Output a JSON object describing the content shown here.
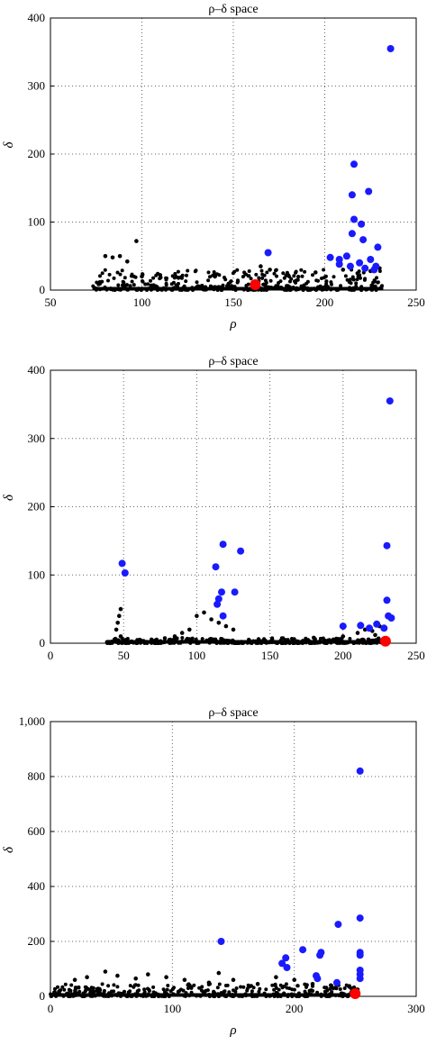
{
  "chart_data": [
    {
      "type": "scatter",
      "title": "ρ–δ space",
      "xlabel": "ρ",
      "ylabel": "δ",
      "xlim": [
        50,
        250
      ],
      "ylim": [
        0,
        400
      ],
      "xticks": [
        "50",
        "100",
        "150",
        "200",
        "250"
      ],
      "yticks": [
        "0",
        "100",
        "200",
        "300",
        "400"
      ],
      "grid": "dotted",
      "black_band": {
        "x_range": [
          73,
          232
        ],
        "y_max": 30
      },
      "series": [
        {
          "color": "#000000",
          "points": [
            [
              80,
              50
            ],
            [
              84,
              48
            ],
            [
              88,
              50
            ],
            [
              92,
              42
            ],
            [
              97,
              72
            ],
            [
              100,
              20
            ],
            [
              110,
              22
            ],
            [
              120,
              18
            ],
            [
              140,
              20
            ],
            [
              165,
              35
            ],
            [
              170,
              30
            ],
            [
              180,
              22
            ],
            [
              195,
              26
            ],
            [
              210,
              30
            ],
            [
              225,
              28
            ],
            [
              230,
              32
            ]
          ]
        },
        {
          "color": "#1a1aff",
          "points": [
            [
              236,
              355
            ],
            [
              216,
              185
            ],
            [
              224,
              145
            ],
            [
              215,
              140
            ],
            [
              216,
              104
            ],
            [
              220,
              97
            ],
            [
              215,
              83
            ],
            [
              221,
              74
            ],
            [
              229,
              63
            ],
            [
              169,
              55
            ],
            [
              203,
              48
            ],
            [
              208,
              45
            ],
            [
              212,
              50
            ],
            [
              219,
              40
            ],
            [
              214,
              35
            ],
            [
              208,
              38
            ],
            [
              225,
              45
            ],
            [
              222,
              32
            ],
            [
              227,
              30
            ],
            [
              228,
              35
            ]
          ]
        },
        {
          "color": "#ff0000",
          "points": [
            [
              162,
              8
            ]
          ]
        }
      ]
    },
    {
      "type": "scatter",
      "title": "ρ–δ space",
      "xlabel": "",
      "ylabel": "δ",
      "xlim": [
        0,
        250
      ],
      "ylim": [
        0,
        400
      ],
      "xticks": [
        "0",
        "50",
        "100",
        "150",
        "200",
        "250"
      ],
      "yticks": [
        "0",
        "100",
        "200",
        "300",
        "400"
      ],
      "grid": "dotted",
      "black_band": {
        "x_range": [
          38,
          230
        ],
        "y_max": 8
      },
      "series": [
        {
          "color": "#000000",
          "points": [
            [
              48,
              50
            ],
            [
              47,
              40
            ],
            [
              46,
              30
            ],
            [
              45,
              20
            ],
            [
              48,
              10
            ],
            [
              100,
              40
            ],
            [
              105,
              45
            ],
            [
              110,
              35
            ],
            [
              118,
              42
            ],
            [
              115,
              30
            ],
            [
              120,
              25
            ],
            [
              125,
              20
            ],
            [
              95,
              20
            ],
            [
              90,
              15
            ],
            [
              85,
              10
            ],
            [
              180,
              8
            ],
            [
              200,
              10
            ],
            [
              210,
              15
            ],
            [
              215,
              20
            ],
            [
              220,
              18
            ],
            [
              225,
              25
            ],
            [
              222,
              12
            ]
          ]
        },
        {
          "color": "#1a1aff",
          "points": [
            [
              232,
              355
            ],
            [
              118,
              145
            ],
            [
              130,
              135
            ],
            [
              230,
              143
            ],
            [
              49,
              117
            ],
            [
              113,
              112
            ],
            [
              51,
              103
            ],
            [
              117,
              75
            ],
            [
              126,
              75
            ],
            [
              115,
              65
            ],
            [
              114,
              57
            ],
            [
              118,
              40
            ],
            [
              230,
              63
            ],
            [
              231,
              40
            ],
            [
              233,
              37
            ],
            [
              200,
              25
            ],
            [
              212,
              26
            ],
            [
              218,
              22
            ],
            [
              223,
              28
            ],
            [
              228,
              22
            ]
          ]
        },
        {
          "color": "#ff0000",
          "points": [
            [
              229,
              3
            ]
          ]
        }
      ]
    },
    {
      "type": "scatter",
      "title": "ρ–δ space",
      "xlabel": "ρ",
      "ylabel": "δ",
      "xlim": [
        0,
        300
      ],
      "ylim": [
        0,
        1000
      ],
      "xticks": [
        "0",
        "100",
        "200",
        "300"
      ],
      "yticks": [
        "0",
        "200",
        "400",
        "600",
        "800",
        "1,000"
      ],
      "grid": "dotted",
      "black_band": {
        "x_range": [
          0,
          254
        ],
        "y_max": 45
      },
      "series": [
        {
          "color": "#000000",
          "points": [
            [
              20,
              60
            ],
            [
              30,
              70
            ],
            [
              45,
              90
            ],
            [
              55,
              75
            ],
            [
              70,
              65
            ],
            [
              80,
              80
            ],
            [
              95,
              70
            ],
            [
              110,
              60
            ],
            [
              130,
              50
            ],
            [
              138,
              85
            ],
            [
              150,
              60
            ],
            [
              170,
              45
            ],
            [
              185,
              70
            ],
            [
              200,
              60
            ],
            [
              215,
              45
            ],
            [
              230,
              40
            ],
            [
              245,
              35
            ],
            [
              252,
              25
            ]
          ]
        },
        {
          "color": "#1a1aff",
          "points": [
            [
              254,
              820
            ],
            [
              254,
              285
            ],
            [
              236,
              262
            ],
            [
              140,
              200
            ],
            [
              207,
              170
            ],
            [
              222,
              160
            ],
            [
              221,
              150
            ],
            [
              254,
              160
            ],
            [
              254,
              150
            ],
            [
              193,
              140
            ],
            [
              190,
              120
            ],
            [
              194,
              105
            ],
            [
              254,
              95
            ],
            [
              254,
              80
            ],
            [
              254,
              65
            ],
            [
              218,
              75
            ],
            [
              219,
              65
            ],
            [
              235,
              50
            ]
          ]
        },
        {
          "color": "#ff0000",
          "points": [
            [
              250,
              10
            ]
          ]
        }
      ]
    }
  ]
}
